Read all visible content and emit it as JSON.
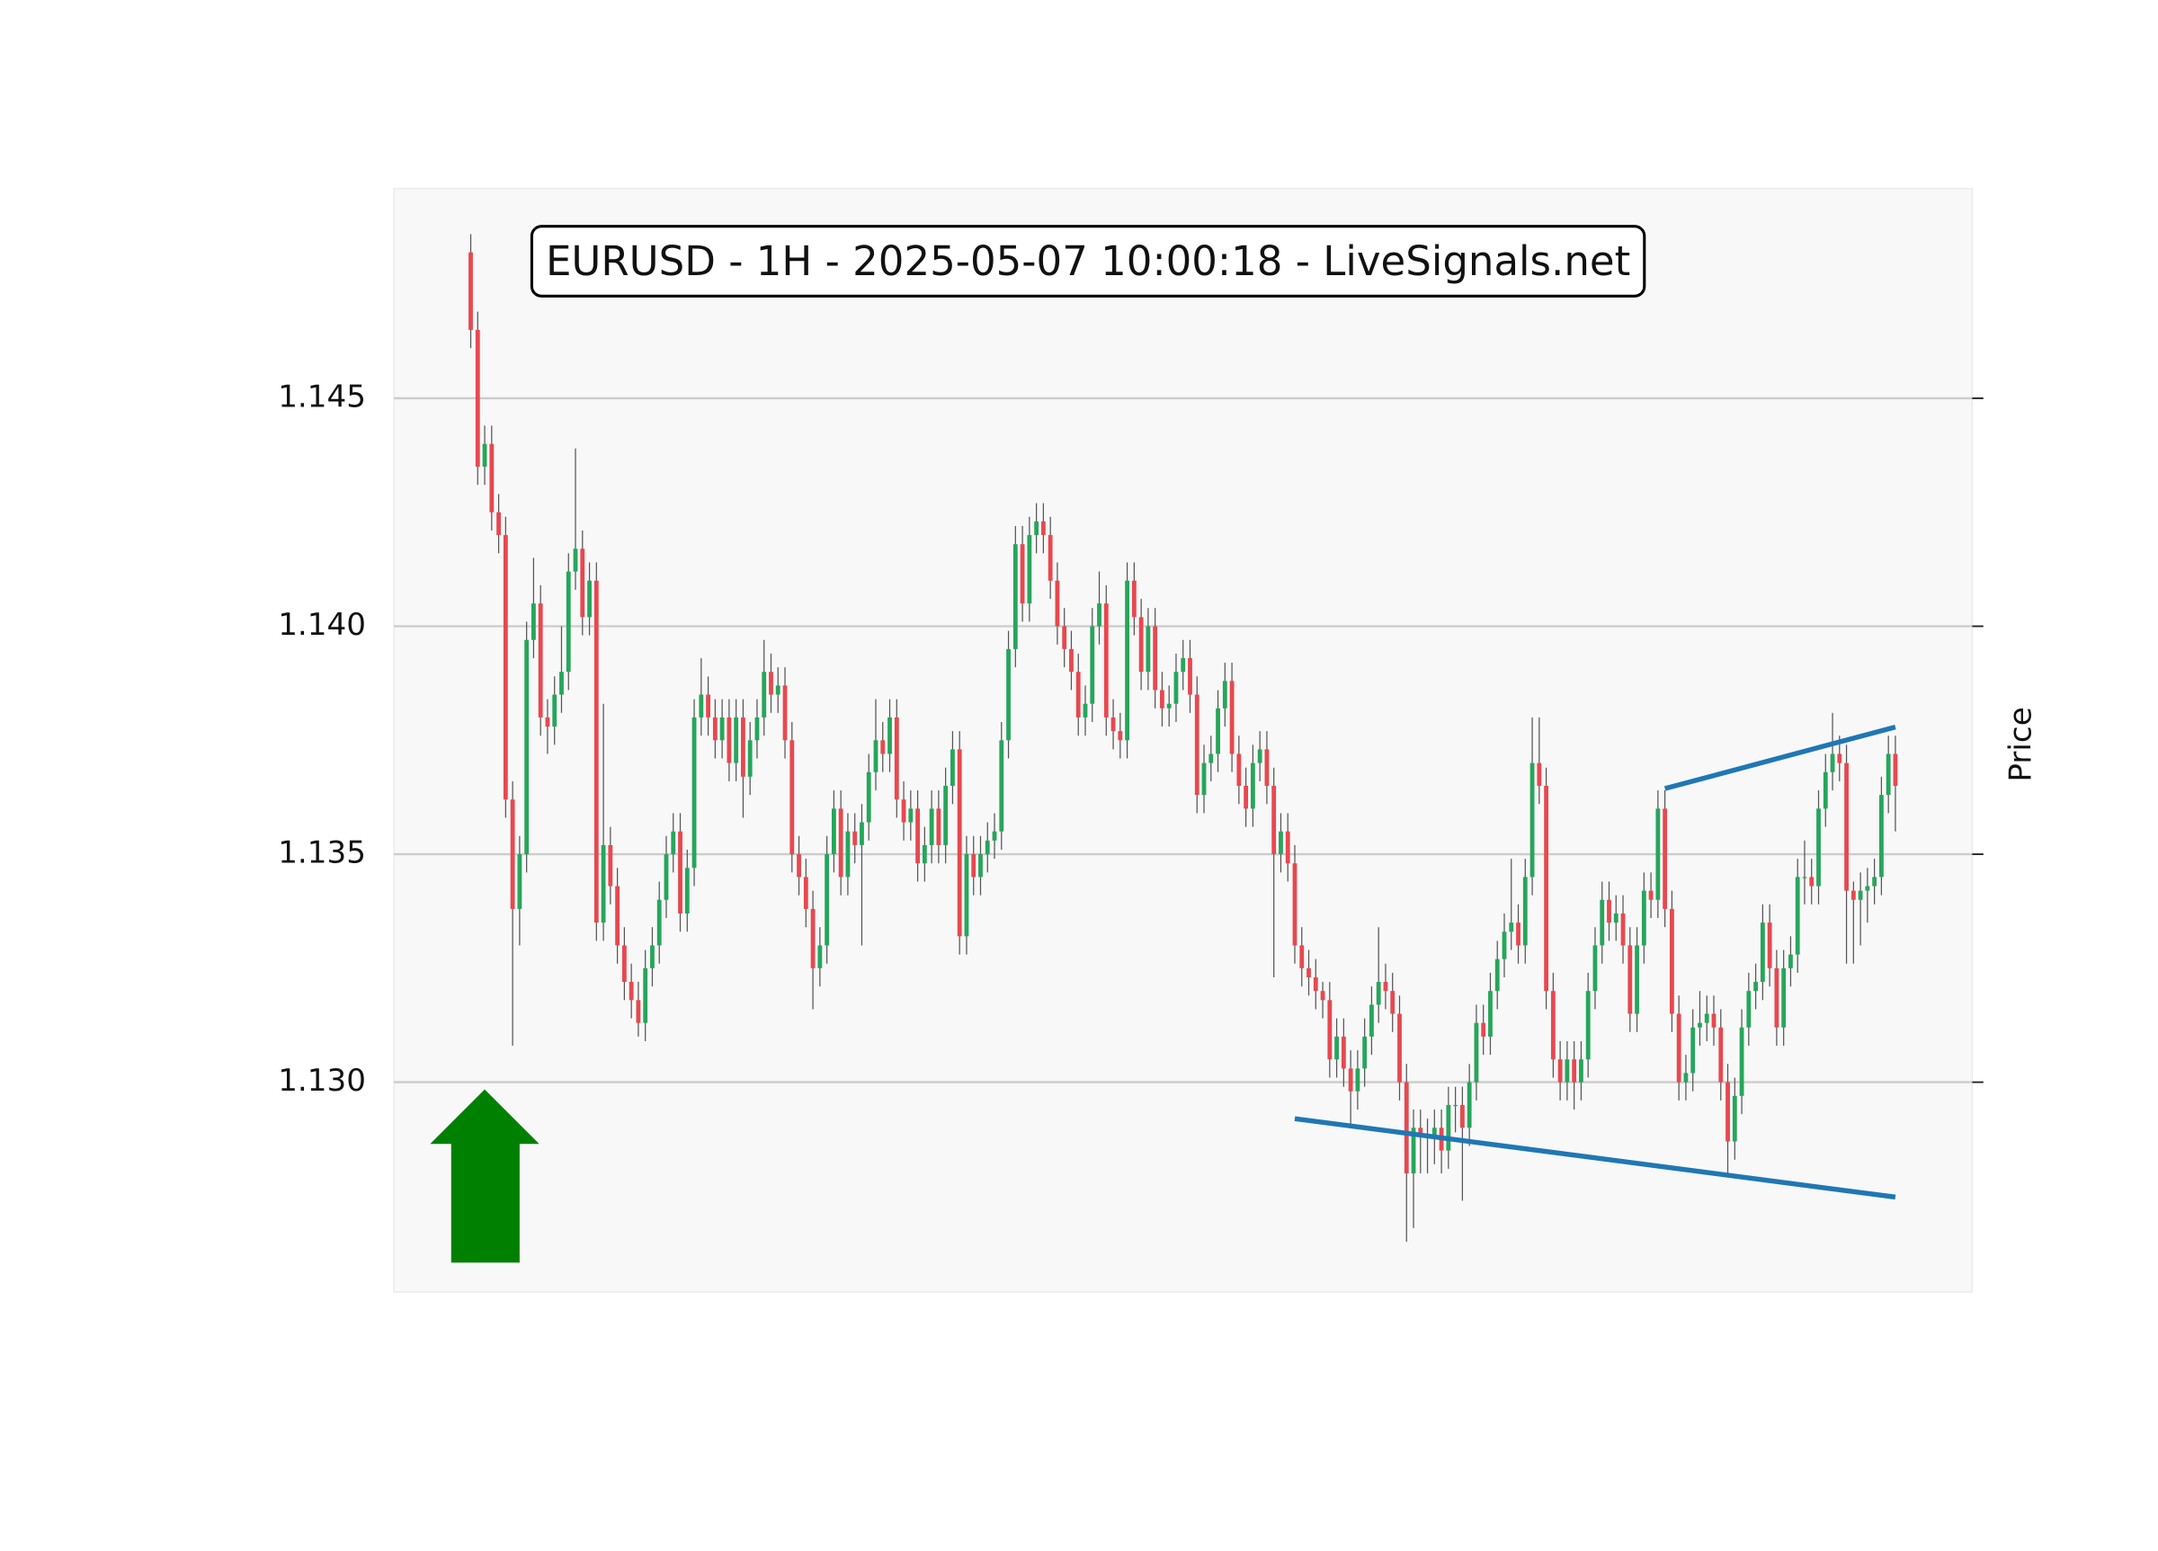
{
  "chart_data": {
    "type": "candlestick",
    "title": "EURUSD - 1H - 2025-05-07 10:00:18 - LiveSignals.net",
    "y_label": "Price",
    "up_color": "#26a65b",
    "down_color": "#e8484f",
    "grid": true,
    "ylim": [
      1.1254,
      1.1496
    ],
    "yticks": [
      {
        "value": 1.13,
        "label": "1.130"
      },
      1.135,
      {
        "value": 1.14,
        "label": "1.140"
      },
      1.145
    ],
    "xlim": [
      -11,
      215
    ],
    "open": [
      1.1482,
      1.1465,
      1.1435,
      1.144,
      1.1425,
      1.142,
      1.1362,
      1.1338,
      1.135,
      1.1397,
      1.1405,
      1.138,
      1.1378,
      1.1385,
      1.139,
      1.1412,
      1.1417,
      1.1402,
      1.141,
      1.1335,
      1.1352,
      1.1343,
      1.133,
      1.1322,
      1.1318,
      1.1313,
      1.1325,
      1.133,
      1.134,
      1.135,
      1.1355,
      1.1337,
      1.1347,
      1.138,
      1.1385,
      1.138,
      1.1375,
      1.138,
      1.137,
      1.138,
      1.1367,
      1.1375,
      1.138,
      1.139,
      1.1385,
      1.1387,
      1.1375,
      1.135,
      1.1345,
      1.1338,
      1.1325,
      1.133,
      1.135,
      1.136,
      1.1345,
      1.1355,
      1.1352,
      1.1357,
      1.1368,
      1.1375,
      1.1372,
      1.138,
      1.1362,
      1.1357,
      1.136,
      1.1348,
      1.1352,
      1.136,
      1.1352,
      1.1365,
      1.1373,
      1.1332,
      1.135,
      1.1345,
      1.135,
      1.1353,
      1.1355,
      1.1375,
      1.1395,
      1.1418,
      1.1405,
      1.142,
      1.1423,
      1.142,
      1.141,
      1.14,
      1.1395,
      1.139,
      1.138,
      1.1383,
      1.14,
      1.1405,
      1.138,
      1.1377,
      1.1375,
      1.141,
      1.1402,
      1.139,
      1.14,
      1.1386,
      1.1382,
      1.1383,
      1.139,
      1.1393,
      1.1385,
      1.1363,
      1.137,
      1.1372,
      1.1382,
      1.1388,
      1.1372,
      1.1365,
      1.136,
      1.137,
      1.1373,
      1.1365,
      1.135,
      1.1355,
      1.1348,
      1.133,
      1.1325,
      1.1323,
      1.132,
      1.1318,
      1.1305,
      1.131,
      1.1303,
      1.1298,
      1.1303,
      1.131,
      1.1317,
      1.1322,
      1.132,
      1.1315,
      1.13,
      1.128,
      1.129,
      1.1288,
      1.1288,
      1.129,
      1.1285,
      1.1295,
      1.1295,
      1.129,
      1.13,
      1.1313,
      1.131,
      1.132,
      1.1327,
      1.1333,
      1.1335,
      1.133,
      1.1345,
      1.137,
      1.1365,
      1.132,
      1.1305,
      1.13,
      1.1305,
      1.13,
      1.1305,
      1.132,
      1.133,
      1.134,
      1.1335,
      1.1337,
      1.133,
      1.1315,
      1.133,
      1.1342,
      1.134,
      1.136,
      1.1338,
      1.1315,
      1.13,
      1.1302,
      1.1312,
      1.1313,
      1.1315,
      1.1312,
      1.13,
      1.1287,
      1.1297,
      1.1312,
      1.132,
      1.1322,
      1.1335,
      1.1325,
      1.1312,
      1.1325,
      1.1328,
      1.1345,
      1.1345,
      1.1343,
      1.136,
      1.1368,
      1.1372,
      1.137,
      1.1342,
      1.134,
      1.1342,
      1.1343,
      1.1345,
      1.1363,
      1.1372
    ],
    "high": [
      1.1486,
      1.1469,
      1.1444,
      1.1444,
      1.1429,
      1.1424,
      1.1366,
      1.1354,
      1.1401,
      1.1415,
      1.1409,
      1.1384,
      1.1389,
      1.14,
      1.1416,
      1.1439,
      1.1421,
      1.1414,
      1.1414,
      1.1383,
      1.1356,
      1.1347,
      1.1334,
      1.1326,
      1.1322,
      1.1329,
      1.1334,
      1.1344,
      1.1354,
      1.1359,
      1.1359,
      1.1351,
      1.1384,
      1.1393,
      1.1389,
      1.1384,
      1.1384,
      1.1384,
      1.1384,
      1.1384,
      1.1379,
      1.1384,
      1.1397,
      1.1394,
      1.1391,
      1.1391,
      1.1379,
      1.1354,
      1.1349,
      1.1342,
      1.1334,
      1.1354,
      1.1364,
      1.1364,
      1.1359,
      1.1359,
      1.1361,
      1.1372,
      1.1384,
      1.1379,
      1.1384,
      1.1384,
      1.1366,
      1.1364,
      1.1364,
      1.1356,
      1.1364,
      1.1364,
      1.1369,
      1.1377,
      1.1377,
      1.1354,
      1.1354,
      1.1354,
      1.1357,
      1.1359,
      1.1379,
      1.1399,
      1.1422,
      1.1422,
      1.1424,
      1.1427,
      1.1427,
      1.1424,
      1.1414,
      1.1404,
      1.1399,
      1.1394,
      1.1387,
      1.1404,
      1.1412,
      1.1409,
      1.1384,
      1.1381,
      1.1414,
      1.1414,
      1.1406,
      1.1404,
      1.1404,
      1.139,
      1.1387,
      1.1394,
      1.1397,
      1.1397,
      1.1389,
      1.1374,
      1.1376,
      1.1386,
      1.1392,
      1.1392,
      1.1376,
      1.1369,
      1.1374,
      1.1377,
      1.1377,
      1.1369,
      1.1359,
      1.1359,
      1.1352,
      1.1334,
      1.1329,
      1.1327,
      1.1322,
      1.1322,
      1.1314,
      1.1314,
      1.1307,
      1.1307,
      1.1314,
      1.1321,
      1.1334,
      1.1326,
      1.1324,
      1.1319,
      1.1304,
      1.1294,
      1.1294,
      1.1292,
      1.1294,
      1.1294,
      1.1299,
      1.1299,
      1.1299,
      1.1304,
      1.1317,
      1.1317,
      1.1324,
      1.1331,
      1.1337,
      1.1349,
      1.1339,
      1.1349,
      1.138,
      1.138,
      1.1369,
      1.1324,
      1.1309,
      1.1309,
      1.1309,
      1.1309,
      1.1324,
      1.1334,
      1.1344,
      1.1344,
      1.1341,
      1.1341,
      1.1334,
      1.1334,
      1.1346,
      1.1346,
      1.1364,
      1.1364,
      1.1342,
      1.1319,
      1.1306,
      1.1316,
      1.132,
      1.1319,
      1.1319,
      1.1316,
      1.1304,
      1.1301,
      1.1316,
      1.1324,
      1.1326,
      1.1339,
      1.1339,
      1.1329,
      1.1329,
      1.1332,
      1.1349,
      1.1353,
      1.1349,
      1.1364,
      1.1372,
      1.1381,
      1.1376,
      1.1374,
      1.1344,
      1.1346,
      1.1347,
      1.1349,
      1.1367,
      1.1376,
      1.1376
    ],
    "low": [
      1.1461,
      1.1431,
      1.1431,
      1.1421,
      1.1416,
      1.1358,
      1.1308,
      1.133,
      1.1346,
      1.1393,
      1.1376,
      1.1372,
      1.1374,
      1.1381,
      1.1386,
      1.1408,
      1.1398,
      1.1398,
      1.1331,
      1.1331,
      1.1339,
      1.1326,
      1.1318,
      1.1314,
      1.131,
      1.1309,
      1.1321,
      1.1326,
      1.1336,
      1.1346,
      1.1333,
      1.1333,
      1.1343,
      1.1376,
      1.1376,
      1.1371,
      1.1371,
      1.1366,
      1.1366,
      1.1358,
      1.1363,
      1.1371,
      1.1376,
      1.1381,
      1.1381,
      1.1371,
      1.1346,
      1.1341,
      1.1334,
      1.1316,
      1.1321,
      1.1326,
      1.1346,
      1.1341,
      1.1341,
      1.1348,
      1.133,
      1.1353,
      1.1364,
      1.1368,
      1.1368,
      1.1358,
      1.1353,
      1.1353,
      1.1344,
      1.1344,
      1.1348,
      1.1348,
      1.1348,
      1.1361,
      1.1328,
      1.1328,
      1.1341,
      1.1341,
      1.1346,
      1.1349,
      1.1351,
      1.1371,
      1.1391,
      1.1401,
      1.1401,
      1.1416,
      1.1416,
      1.1406,
      1.1396,
      1.1391,
      1.1386,
      1.1376,
      1.1376,
      1.1379,
      1.1396,
      1.1376,
      1.1373,
      1.1371,
      1.1371,
      1.1398,
      1.1386,
      1.1386,
      1.1382,
      1.1378,
      1.1378,
      1.1379,
      1.1386,
      1.1381,
      1.1359,
      1.1359,
      1.1366,
      1.1368,
      1.1378,
      1.1368,
      1.1361,
      1.1356,
      1.1356,
      1.1366,
      1.1361,
      1.1323,
      1.1346,
      1.1344,
      1.1326,
      1.1321,
      1.1319,
      1.1316,
      1.1314,
      1.1301,
      1.1301,
      1.1299,
      1.129,
      1.1294,
      1.1299,
      1.1306,
      1.1313,
      1.1316,
      1.1311,
      1.1296,
      1.1265,
      1.1268,
      1.128,
      1.128,
      1.1282,
      1.128,
      1.1281,
      1.1289,
      1.1274,
      1.1286,
      1.1296,
      1.1306,
      1.1306,
      1.1316,
      1.1323,
      1.1329,
      1.1326,
      1.1326,
      1.1341,
      1.1361,
      1.1316,
      1.1301,
      1.1296,
      1.1296,
      1.1294,
      1.1296,
      1.1301,
      1.1316,
      1.1326,
      1.1331,
      1.1331,
      1.1326,
      1.1311,
      1.1311,
      1.1326,
      1.1336,
      1.1336,
      1.1334,
      1.1311,
      1.1296,
      1.1296,
      1.1298,
      1.1308,
      1.1309,
      1.1308,
      1.1296,
      1.128,
      1.1283,
      1.1293,
      1.1308,
      1.1316,
      1.1318,
      1.1321,
      1.1308,
      1.1308,
      1.1321,
      1.1324,
      1.1339,
      1.1339,
      1.1339,
      1.1356,
      1.1364,
      1.1366,
      1.1326,
      1.1326,
      1.133,
      1.1335,
      1.1339,
      1.1341,
      1.1359,
      1.1355
    ],
    "close": [
      1.1465,
      1.1435,
      1.144,
      1.1425,
      1.142,
      1.1362,
      1.1338,
      1.135,
      1.1397,
      1.1405,
      1.138,
      1.1378,
      1.1385,
      1.139,
      1.1412,
      1.1417,
      1.1402,
      1.141,
      1.1335,
      1.1352,
      1.1343,
      1.133,
      1.1322,
      1.1318,
      1.1313,
      1.1325,
      1.133,
      1.134,
      1.135,
      1.1355,
      1.1337,
      1.1347,
      1.138,
      1.1385,
      1.138,
      1.1375,
      1.138,
      1.137,
      1.138,
      1.1367,
      1.1375,
      1.138,
      1.139,
      1.1385,
      1.1387,
      1.1375,
      1.135,
      1.1345,
      1.1338,
      1.1325,
      1.133,
      1.135,
      1.136,
      1.1345,
      1.1355,
      1.1352,
      1.1357,
      1.1368,
      1.1375,
      1.1372,
      1.138,
      1.1362,
      1.1357,
      1.136,
      1.1348,
      1.1352,
      1.136,
      1.1352,
      1.1365,
      1.1373,
      1.1332,
      1.135,
      1.1345,
      1.135,
      1.1353,
      1.1355,
      1.1375,
      1.1395,
      1.1418,
      1.1405,
      1.142,
      1.1423,
      1.142,
      1.141,
      1.14,
      1.1395,
      1.139,
      1.138,
      1.1383,
      1.14,
      1.1405,
      1.138,
      1.1377,
      1.1375,
      1.141,
      1.1402,
      1.139,
      1.14,
      1.1386,
      1.1382,
      1.1383,
      1.139,
      1.1393,
      1.1385,
      1.1363,
      1.137,
      1.1372,
      1.1382,
      1.1388,
      1.1372,
      1.1365,
      1.136,
      1.137,
      1.1373,
      1.1365,
      1.135,
      1.1355,
      1.1348,
      1.133,
      1.1325,
      1.1323,
      1.132,
      1.1318,
      1.1305,
      1.131,
      1.1303,
      1.1298,
      1.1303,
      1.131,
      1.1317,
      1.1322,
      1.132,
      1.1315,
      1.13,
      1.128,
      1.129,
      1.1288,
      1.1288,
      1.129,
      1.1285,
      1.1295,
      1.1295,
      1.129,
      1.13,
      1.1313,
      1.131,
      1.132,
      1.1327,
      1.1333,
      1.1335,
      1.133,
      1.1345,
      1.137,
      1.1365,
      1.132,
      1.1305,
      1.13,
      1.1305,
      1.13,
      1.1305,
      1.132,
      1.133,
      1.134,
      1.1335,
      1.1337,
      1.133,
      1.1315,
      1.133,
      1.1342,
      1.134,
      1.136,
      1.1338,
      1.1315,
      1.13,
      1.1302,
      1.1312,
      1.1313,
      1.1315,
      1.1312,
      1.13,
      1.1287,
      1.1297,
      1.1312,
      1.132,
      1.1322,
      1.1335,
      1.1325,
      1.1312,
      1.1325,
      1.1328,
      1.1345,
      1.1345,
      1.1343,
      1.136,
      1.1368,
      1.1372,
      1.137,
      1.1342,
      1.134,
      1.1342,
      1.1343,
      1.1345,
      1.1363,
      1.1372,
      1.1365
    ],
    "trendlines": [
      {
        "color": "#1f77b4",
        "x": [
          118,
          204
        ],
        "y": [
          1.1292,
          1.12748
        ]
      },
      {
        "color": "#1f77b4",
        "x": [
          171,
          204
        ],
        "y": [
          1.13644,
          1.13779
        ]
      }
    ]
  }
}
